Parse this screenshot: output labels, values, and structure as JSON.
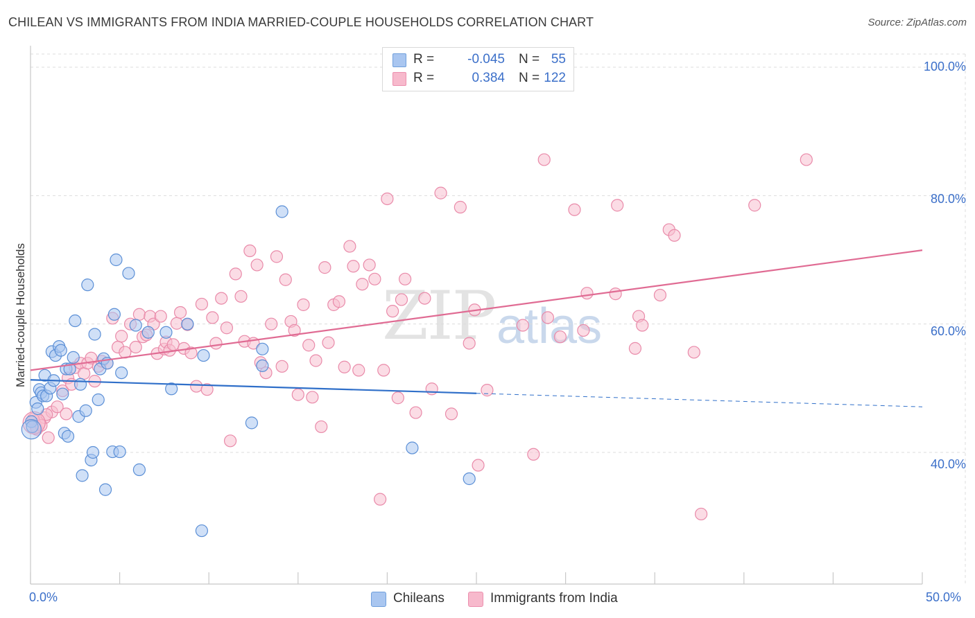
{
  "header": {
    "title": "CHILEAN VS IMMIGRANTS FROM INDIA MARRIED-COUPLE HOUSEHOLDS CORRELATION CHART",
    "source": "Source: ZipAtlas.com"
  },
  "watermark": {
    "zip": "ZIP",
    "atlas": "atlas"
  },
  "legend_top": {
    "rows": [
      {
        "r_label": "R =",
        "r_value": "-0.045",
        "n_label": "N =",
        "n_value": "55",
        "color": "#a9c6f0",
        "border": "#6f9fdc"
      },
      {
        "r_label": "R =",
        "r_value": "0.384",
        "n_label": "N =",
        "n_value": "122",
        "color": "#f7b9cc",
        "border": "#ec8fae"
      }
    ]
  },
  "legend_bottom": {
    "items": [
      {
        "label": "Chileans",
        "color": "#a9c6f0",
        "border": "#6f9fdc"
      },
      {
        "label": "Immigrants from India",
        "color": "#f7b9cc",
        "border": "#ec8fae"
      }
    ]
  },
  "colors": {
    "blue_fill": "#a9c6f0",
    "blue_stroke": "#5b8fd6",
    "blue_line": "#2f6fc9",
    "pink_fill": "#f7bfd0",
    "pink_stroke": "#e98aa9",
    "pink_line": "#e06b93",
    "grid": "#dcdcdc",
    "axis": "#c8c8c8",
    "tick_text": "#3b6fc9"
  },
  "chart_data": {
    "type": "scatter",
    "title": "CHILEAN VS IMMIGRANTS FROM INDIA MARRIED-COUPLE HOUSEHOLDS CORRELATION CHART",
    "xlabel": "",
    "ylabel": "Married-couple Households",
    "xlim": [
      0,
      50
    ],
    "ylim": [
      20,
      100
    ],
    "x_ticks": [
      "0.0%",
      "50.0%"
    ],
    "y_ticks": [
      {
        "value": 100,
        "label": "100.0%"
      },
      {
        "value": 80,
        "label": "80.0%"
      },
      {
        "value": 60,
        "label": "60.0%"
      },
      {
        "value": 40,
        "label": "40.0%"
      }
    ],
    "series": [
      {
        "name": "Chileans",
        "r": -0.045,
        "n": 55,
        "trend": {
          "x0": 0,
          "y0": 51.3,
          "x1": 25,
          "y1": 49.2,
          "dash_to_x": 50,
          "dash_to_y": 47.1
        },
        "points": [
          [
            0.3,
            47.8
          ],
          [
            0.4,
            46.8
          ],
          [
            0.5,
            49.8
          ],
          [
            0.6,
            49.3
          ],
          [
            0.7,
            48.8
          ],
          [
            0.8,
            52.0
          ],
          [
            0.9,
            48.8
          ],
          [
            1.1,
            50.0
          ],
          [
            1.2,
            55.7
          ],
          [
            1.3,
            51.2
          ],
          [
            1.4,
            55.1
          ],
          [
            1.6,
            56.5
          ],
          [
            1.7,
            55.9
          ],
          [
            1.8,
            49.1
          ],
          [
            1.9,
            43.0
          ],
          [
            2.0,
            53.0
          ],
          [
            2.1,
            42.5
          ],
          [
            2.2,
            53.0
          ],
          [
            2.4,
            54.8
          ],
          [
            2.5,
            60.5
          ],
          [
            2.7,
            45.6
          ],
          [
            2.8,
            50.6
          ],
          [
            2.9,
            36.4
          ],
          [
            3.1,
            46.5
          ],
          [
            3.2,
            66.1
          ],
          [
            3.4,
            38.8
          ],
          [
            3.5,
            40.0
          ],
          [
            3.6,
            58.4
          ],
          [
            3.8,
            48.2
          ],
          [
            3.9,
            53.0
          ],
          [
            4.1,
            54.6
          ],
          [
            4.2,
            34.2
          ],
          [
            4.3,
            53.9
          ],
          [
            4.6,
            40.1
          ],
          [
            4.7,
            61.5
          ],
          [
            4.8,
            70.0
          ],
          [
            5.0,
            40.1
          ],
          [
            5.1,
            52.4
          ],
          [
            5.5,
            67.9
          ],
          [
            5.9,
            59.8
          ],
          [
            6.1,
            37.3
          ],
          [
            6.6,
            58.7
          ],
          [
            7.6,
            58.7
          ],
          [
            7.9,
            49.9
          ],
          [
            8.8,
            60.0
          ],
          [
            9.6,
            27.8
          ],
          [
            9.7,
            55.1
          ],
          [
            12.4,
            44.6
          ],
          [
            13.0,
            56.1
          ],
          [
            13.0,
            53.5
          ],
          [
            14.1,
            77.5
          ],
          [
            21.4,
            40.7
          ],
          [
            24.6,
            35.9
          ],
          [
            0.05,
            44.8
          ],
          [
            0.1,
            44.0
          ]
        ]
      },
      {
        "name": "Immigrants from India",
        "r": 0.384,
        "n": 122,
        "trend": {
          "x0": 0,
          "y0": 52.8,
          "x1": 50,
          "y1": 71.5
        },
        "points": [
          [
            0.2,
            44.9
          ],
          [
            0.3,
            44.0
          ],
          [
            0.5,
            44.5
          ],
          [
            0.8,
            45.4
          ],
          [
            1.0,
            42.3
          ],
          [
            1.2,
            46.3
          ],
          [
            1.5,
            47.1
          ],
          [
            1.8,
            49.6
          ],
          [
            2.0,
            46.0
          ],
          [
            2.1,
            51.6
          ],
          [
            2.3,
            50.6
          ],
          [
            2.5,
            53.2
          ],
          [
            2.8,
            53.9
          ],
          [
            3.0,
            52.3
          ],
          [
            3.2,
            53.9
          ],
          [
            3.4,
            54.7
          ],
          [
            3.6,
            51.1
          ],
          [
            3.8,
            53.4
          ],
          [
            4.0,
            54.2
          ],
          [
            4.3,
            53.9
          ],
          [
            4.6,
            60.9
          ],
          [
            4.9,
            56.4
          ],
          [
            5.1,
            58.1
          ],
          [
            5.3,
            55.6
          ],
          [
            5.6,
            60.0
          ],
          [
            5.9,
            56.4
          ],
          [
            6.1,
            61.5
          ],
          [
            6.3,
            58.0
          ],
          [
            6.5,
            58.3
          ],
          [
            6.7,
            61.2
          ],
          [
            6.9,
            60.0
          ],
          [
            7.1,
            55.4
          ],
          [
            7.3,
            61.2
          ],
          [
            7.5,
            56.1
          ],
          [
            7.6,
            57.2
          ],
          [
            7.8,
            55.9
          ],
          [
            8.0,
            56.8
          ],
          [
            8.2,
            60.1
          ],
          [
            8.4,
            61.8
          ],
          [
            8.6,
            56.2
          ],
          [
            8.8,
            59.9
          ],
          [
            9.0,
            55.5
          ],
          [
            9.3,
            50.3
          ],
          [
            9.6,
            63.1
          ],
          [
            9.9,
            49.8
          ],
          [
            10.2,
            61.0
          ],
          [
            10.4,
            57.0
          ],
          [
            10.7,
            64.0
          ],
          [
            11.0,
            59.4
          ],
          [
            11.2,
            41.8
          ],
          [
            11.5,
            67.8
          ],
          [
            11.8,
            64.3
          ],
          [
            12.0,
            57.3
          ],
          [
            12.3,
            71.4
          ],
          [
            12.5,
            57.0
          ],
          [
            12.7,
            69.2
          ],
          [
            12.9,
            54.0
          ],
          [
            13.2,
            52.4
          ],
          [
            13.5,
            60.0
          ],
          [
            13.8,
            70.5
          ],
          [
            14.1,
            53.4
          ],
          [
            14.3,
            66.9
          ],
          [
            14.6,
            60.4
          ],
          [
            14.8,
            59.0
          ],
          [
            15.0,
            49.0
          ],
          [
            15.3,
            63.0
          ],
          [
            15.6,
            56.7
          ],
          [
            15.8,
            48.6
          ],
          [
            16.0,
            54.3
          ],
          [
            16.3,
            44.0
          ],
          [
            16.5,
            68.8
          ],
          [
            16.7,
            57.1
          ],
          [
            17.0,
            63.0
          ],
          [
            17.3,
            63.5
          ],
          [
            17.6,
            53.3
          ],
          [
            17.9,
            72.1
          ],
          [
            18.1,
            69.0
          ],
          [
            18.4,
            52.8
          ],
          [
            18.6,
            66.2
          ],
          [
            19.0,
            69.2
          ],
          [
            19.3,
            67.0
          ],
          [
            19.6,
            32.7
          ],
          [
            19.8,
            52.8
          ],
          [
            20.0,
            79.5
          ],
          [
            20.3,
            62.0
          ],
          [
            20.6,
            48.5
          ],
          [
            20.8,
            63.8
          ],
          [
            21.0,
            67.0
          ],
          [
            21.6,
            46.2
          ],
          [
            22.1,
            64.0
          ],
          [
            22.5,
            49.9
          ],
          [
            23.0,
            80.4
          ],
          [
            23.6,
            46.0
          ],
          [
            24.1,
            78.2
          ],
          [
            24.6,
            57.0
          ],
          [
            24.9,
            62.2
          ],
          [
            25.1,
            38.0
          ],
          [
            25.6,
            49.7
          ],
          [
            27.6,
            59.8
          ],
          [
            28.2,
            39.7
          ],
          [
            28.8,
            85.6
          ],
          [
            29.0,
            61.0
          ],
          [
            29.7,
            58.0
          ],
          [
            30.5,
            77.8
          ],
          [
            31.0,
            59.0
          ],
          [
            31.2,
            64.8
          ],
          [
            32.8,
            64.7
          ],
          [
            32.9,
            78.5
          ],
          [
            33.9,
            56.2
          ],
          [
            34.1,
            61.2
          ],
          [
            34.3,
            59.8
          ],
          [
            35.3,
            64.5
          ],
          [
            35.8,
            74.7
          ],
          [
            36.1,
            73.8
          ],
          [
            37.2,
            55.6
          ],
          [
            37.6,
            30.4
          ],
          [
            40.6,
            78.5
          ],
          [
            43.5,
            85.6
          ],
          [
            0.15,
            45.2
          ],
          [
            0.35,
            43.6
          ],
          [
            0.6,
            44.2
          ],
          [
            0.9,
            45.9
          ]
        ]
      }
    ]
  },
  "axis_labels": {
    "ylabel": "Married-couple Households",
    "x_min": "0.0%",
    "x_max": "50.0%",
    "y_100": "100.0%",
    "y_80": "80.0%",
    "y_60": "60.0%",
    "y_40": "40.0%"
  }
}
